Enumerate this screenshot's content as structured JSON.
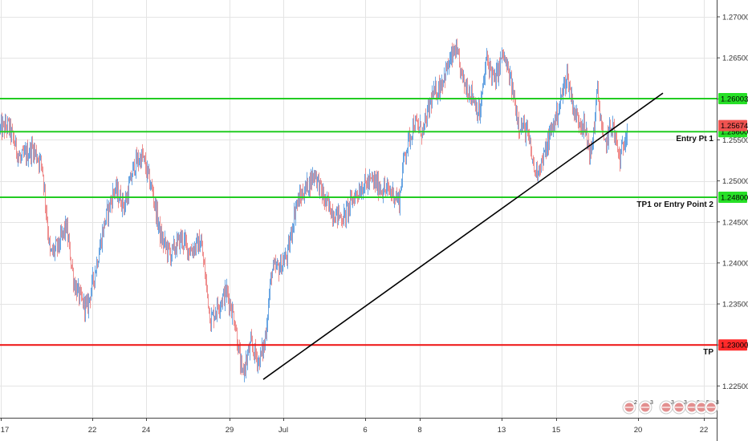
{
  "chart_data": {
    "type": "candlestick",
    "instrument": "",
    "y_axis": {
      "range": [
        1.2215,
        1.273
      ],
      "ticks": [
        "1.27000",
        "1.26500",
        "1.26000",
        "1.25500",
        "1.25000",
        "1.24500",
        "1.24000",
        "1.23500",
        "1.23000",
        "1.22500"
      ],
      "tick_values": [
        1.27,
        1.265,
        1.26,
        1.255,
        1.25,
        1.245,
        1.24,
        1.235,
        1.23,
        1.225
      ],
      "side": "right",
      "grid": true
    },
    "x_axis": {
      "ticks": [
        "17",
        "22",
        "24",
        "29",
        "Jul",
        "6",
        "8",
        "13",
        "15",
        "20",
        "22"
      ],
      "tick_index": [
        1,
        115,
        182,
        286,
        353,
        455,
        523,
        625,
        693,
        795,
        877
      ],
      "grid": true
    },
    "current_price": {
      "value": 1.25674,
      "label": "1.25674",
      "color": "#ef5350"
    },
    "horizontal_levels": [
      {
        "value": 1.26003,
        "tag": "1.26003",
        "label": "",
        "color": "#22cc22"
      },
      {
        "value": 1.256,
        "tag": "1.25600",
        "label": "Entry Pt 1",
        "color": "#22cc22"
      },
      {
        "value": 1.248,
        "tag": "1.24800",
        "label": "TP1 or Entry Point 2",
        "color": "#22cc22"
      },
      {
        "value": 1.23,
        "tag": "1.23000",
        "label": "TP",
        "color": "#ee1111"
      }
    ],
    "trendline": {
      "from": {
        "index": 328,
        "value": 1.2258
      },
      "to": {
        "index": 826,
        "value": 1.2607
      },
      "color": "#000000"
    },
    "candle_colors": {
      "up": "#6aa6e3",
      "down": "#ef8f8f"
    },
    "anchors": [
      [
        0,
        1.2563
      ],
      [
        10,
        1.2567
      ],
      [
        25,
        1.2525
      ],
      [
        40,
        1.254
      ],
      [
        52,
        1.252
      ],
      [
        62,
        1.241
      ],
      [
        72,
        1.242
      ],
      [
        82,
        1.2445
      ],
      [
        92,
        1.2375
      ],
      [
        100,
        1.2355
      ],
      [
        108,
        1.2345
      ],
      [
        118,
        1.239
      ],
      [
        130,
        1.245
      ],
      [
        142,
        1.249
      ],
      [
        155,
        1.247
      ],
      [
        167,
        1.252
      ],
      [
        177,
        1.253
      ],
      [
        190,
        1.2485
      ],
      [
        200,
        1.243
      ],
      [
        212,
        1.241
      ],
      [
        225,
        1.243
      ],
      [
        236,
        1.2415
      ],
      [
        250,
        1.2425
      ],
      [
        262,
        1.233
      ],
      [
        272,
        1.235
      ],
      [
        282,
        1.2365
      ],
      [
        292,
        1.233
      ],
      [
        301,
        1.2262
      ],
      [
        312,
        1.23
      ],
      [
        322,
        1.228
      ],
      [
        329,
        1.23
      ],
      [
        338,
        1.239
      ],
      [
        348,
        1.2395
      ],
      [
        358,
        1.241
      ],
      [
        368,
        1.247
      ],
      [
        380,
        1.249
      ],
      [
        392,
        1.251
      ],
      [
        404,
        1.2475
      ],
      [
        416,
        1.246
      ],
      [
        428,
        1.2455
      ],
      [
        440,
        1.248
      ],
      [
        452,
        1.2495
      ],
      [
        464,
        1.25
      ],
      [
        476,
        1.249
      ],
      [
        490,
        1.2485
      ],
      [
        497,
        1.2475
      ],
      [
        503,
        1.253
      ],
      [
        515,
        1.257
      ],
      [
        527,
        1.256
      ],
      [
        537,
        1.26
      ],
      [
        547,
        1.2615
      ],
      [
        558,
        1.264
      ],
      [
        567,
        1.266
      ],
      [
        577,
        1.262
      ],
      [
        588,
        1.2605
      ],
      [
        597,
        1.258
      ],
      [
        606,
        1.265
      ],
      [
        616,
        1.262
      ],
      [
        626,
        1.2655
      ],
      [
        636,
        1.262
      ],
      [
        646,
        1.257
      ],
      [
        656,
        1.256
      ],
      [
        666,
        1.251
      ],
      [
        676,
        1.2525
      ],
      [
        686,
        1.256
      ],
      [
        696,
        1.259
      ],
      [
        706,
        1.263
      ],
      [
        716,
        1.258
      ],
      [
        726,
        1.257
      ],
      [
        736,
        1.253
      ],
      [
        744,
        1.261
      ],
      [
        752,
        1.254
      ],
      [
        762,
        1.257
      ],
      [
        772,
        1.2525
      ],
      [
        781,
        1.2567
      ]
    ]
  },
  "event_badges": [
    {
      "count": "2",
      "color": "#cc3333"
    },
    {
      "count": "3",
      "color": "#cc3333"
    },
    {
      "count": "3",
      "color": "#cc3333"
    },
    {
      "count": "3",
      "color": "#cc3333"
    },
    {
      "count": "8",
      "color": "#cc3333"
    },
    {
      "count": "5",
      "color": "#cc3333"
    },
    {
      "count": "3",
      "color": "#cc3333"
    }
  ]
}
